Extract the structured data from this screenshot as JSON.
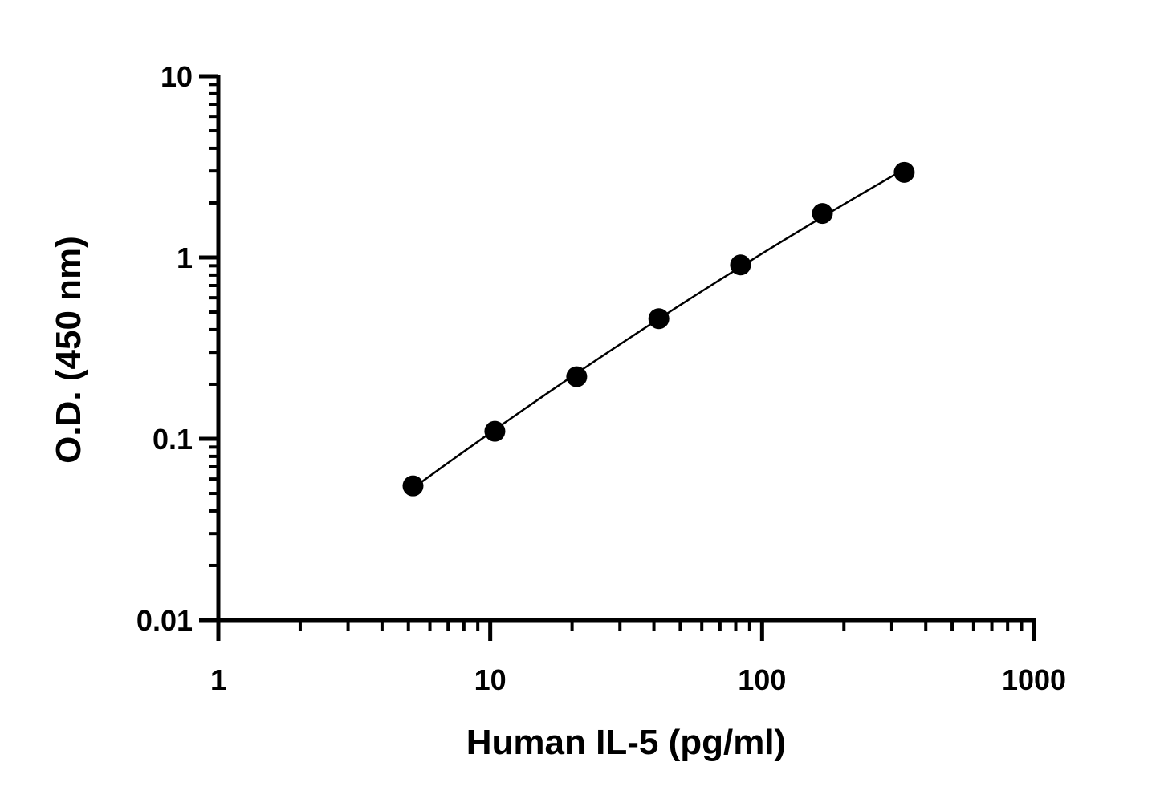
{
  "chart_data": {
    "type": "scatter",
    "title": "",
    "xlabel": "Human IL-5 (pg/ml)",
    "ylabel": "O.D. (450 nm)",
    "x_scale": "log",
    "y_scale": "log",
    "xlim": [
      1,
      1000
    ],
    "ylim": [
      0.01,
      10
    ],
    "x_ticks": [
      {
        "value": 1,
        "label": "1"
      },
      {
        "value": 10,
        "label": "10"
      },
      {
        "value": 100,
        "label": "100"
      },
      {
        "value": 1000,
        "label": "1000"
      }
    ],
    "y_ticks": [
      {
        "value": 0.01,
        "label": "0.01"
      },
      {
        "value": 0.1,
        "label": "0.1"
      },
      {
        "value": 1,
        "label": "1"
      },
      {
        "value": 10,
        "label": "10"
      }
    ],
    "grid": false,
    "legend": "none",
    "series": [
      {
        "fit_curve": true,
        "points": [
          {
            "x": 5.2,
            "y": 0.055
          },
          {
            "x": 10.4,
            "y": 0.11
          },
          {
            "x": 20.8,
            "y": 0.22
          },
          {
            "x": 41.7,
            "y": 0.46
          },
          {
            "x": 83.3,
            "y": 0.91
          },
          {
            "x": 166.7,
            "y": 1.75
          },
          {
            "x": 333.3,
            "y": 2.95
          }
        ]
      }
    ],
    "colors": {
      "marker": "#000000",
      "line": "#000000",
      "axis": "#000000"
    }
  }
}
